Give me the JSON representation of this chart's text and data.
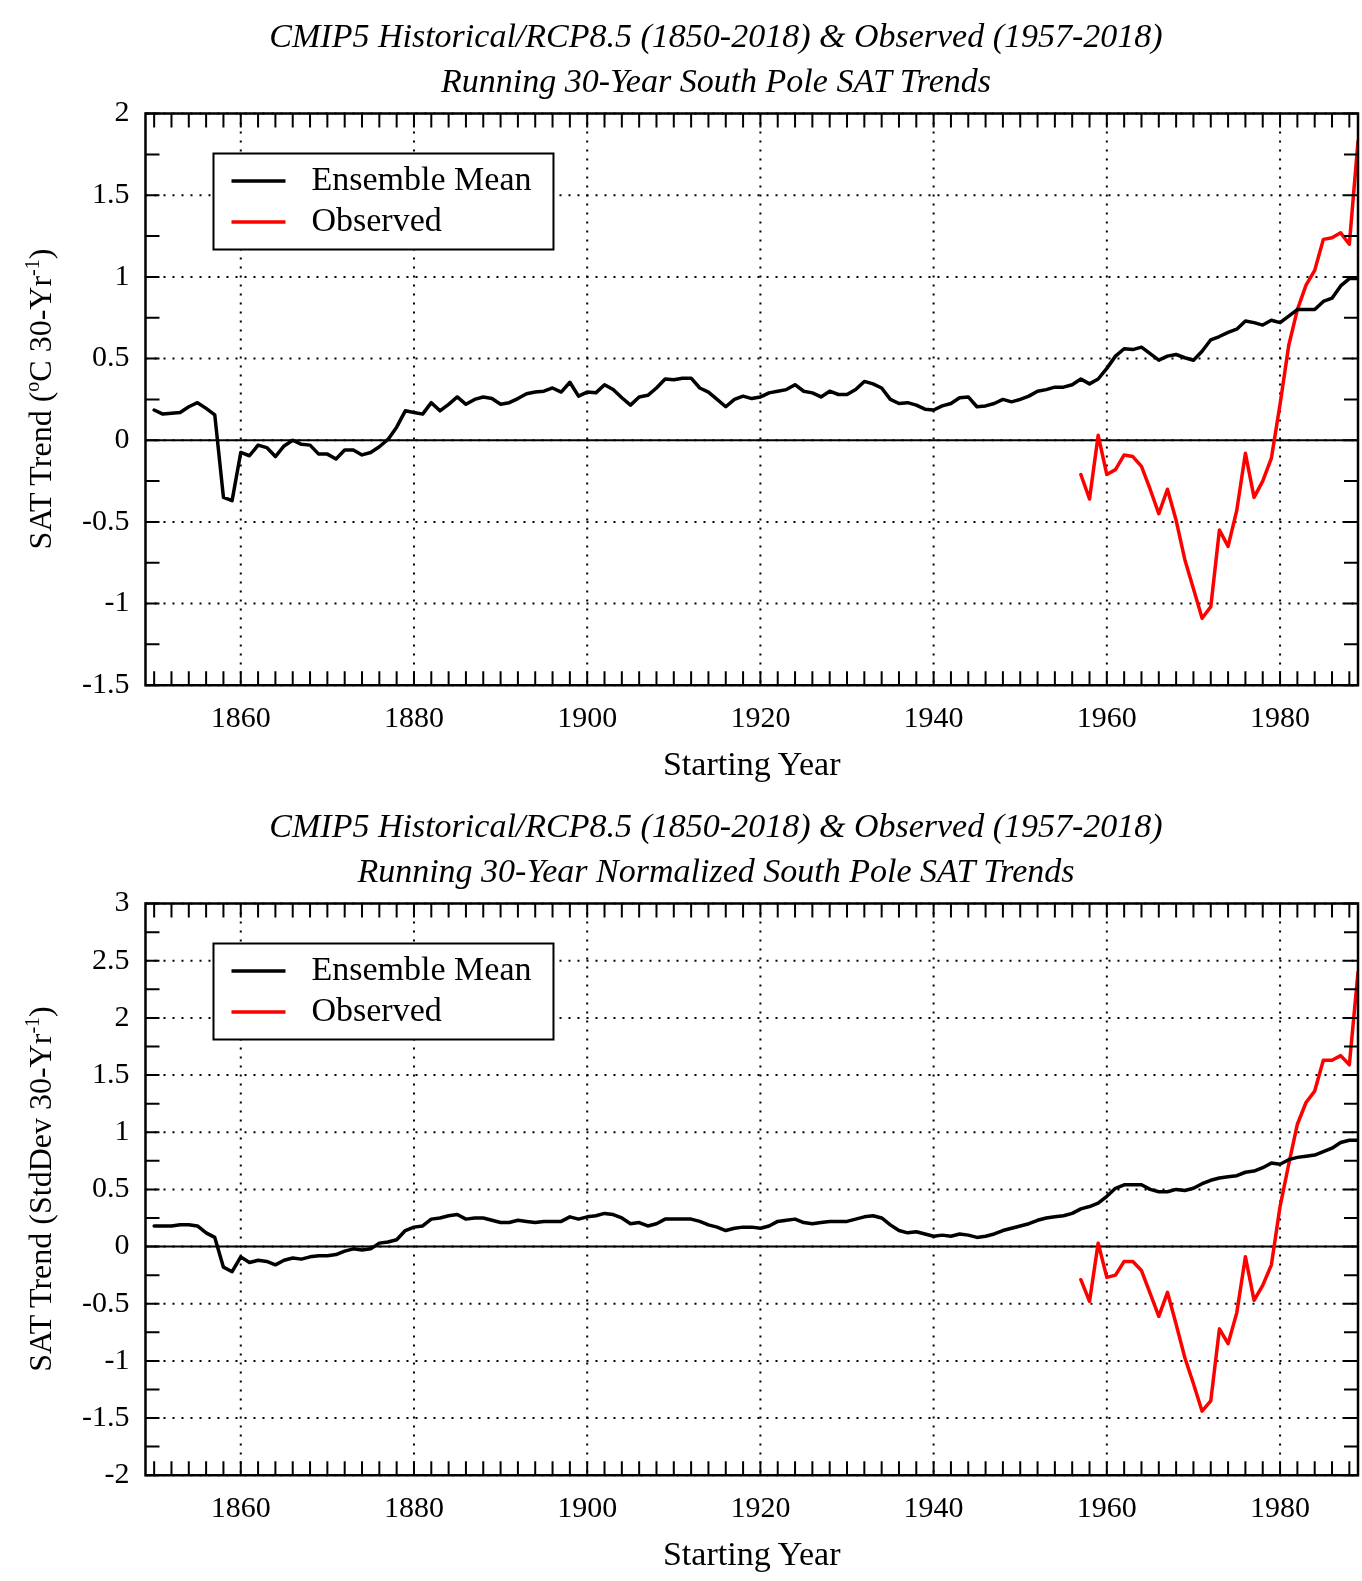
{
  "chart_data": [
    {
      "type": "line",
      "title": "CMIP5 Historical/RCP8.5 (1850-2018) & Observed (1957-2018)",
      "subtitle": "Running 30-Year South Pole SAT Trends",
      "xlabel": "Starting Year",
      "ylabel": "SAT Trend ($^{o}$C 30-Yr$^{-1}$)",
      "x": [
        1850,
        1851,
        1852,
        1853,
        1854,
        1855,
        1856,
        1857,
        1858,
        1859,
        1860,
        1861,
        1862,
        1863,
        1864,
        1865,
        1866,
        1867,
        1868,
        1869,
        1870,
        1871,
        1872,
        1873,
        1874,
        1875,
        1876,
        1877,
        1878,
        1879,
        1880,
        1881,
        1882,
        1883,
        1884,
        1885,
        1886,
        1887,
        1888,
        1889,
        1890,
        1891,
        1892,
        1893,
        1894,
        1895,
        1896,
        1897,
        1898,
        1899,
        1900,
        1901,
        1902,
        1903,
        1904,
        1905,
        1906,
        1907,
        1908,
        1909,
        1910,
        1911,
        1912,
        1913,
        1914,
        1915,
        1916,
        1917,
        1918,
        1919,
        1920,
        1921,
        1922,
        1923,
        1924,
        1925,
        1926,
        1927,
        1928,
        1929,
        1930,
        1931,
        1932,
        1933,
        1934,
        1935,
        1936,
        1937,
        1938,
        1939,
        1940,
        1941,
        1942,
        1943,
        1944,
        1945,
        1946,
        1947,
        1948,
        1949,
        1950,
        1951,
        1952,
        1953,
        1954,
        1955,
        1956,
        1957,
        1958,
        1959,
        1960,
        1961,
        1962,
        1963,
        1964,
        1965,
        1966,
        1967,
        1968,
        1969,
        1970,
        1971,
        1972,
        1973,
        1974,
        1975,
        1976,
        1977,
        1978,
        1979,
        1980,
        1981,
        1982,
        1983,
        1984,
        1985,
        1986,
        1987,
        1988,
        1989
      ],
      "series": [
        {
          "name": "Ensemble Mean",
          "color": "#000000",
          "values": [
            0.185,
            0.16,
            0.165,
            0.17,
            0.205,
            0.23,
            0.195,
            0.155,
            -0.35,
            -0.37,
            -0.075,
            -0.095,
            -0.03,
            -0.045,
            -0.1,
            -0.035,
            0,
            -0.025,
            -0.03,
            -0.085,
            -0.085,
            -0.115,
            -0.06,
            -0.06,
            -0.09,
            -0.075,
            -0.04,
            0.005,
            0.08,
            0.18,
            0.17,
            0.16,
            0.23,
            0.18,
            0.22,
            0.265,
            0.22,
            0.25,
            0.265,
            0.255,
            0.22,
            0.23,
            0.255,
            0.285,
            0.295,
            0.3,
            0.32,
            0.295,
            0.355,
            0.27,
            0.295,
            0.29,
            0.34,
            0.31,
            0.26,
            0.215,
            0.265,
            0.275,
            0.32,
            0.375,
            0.37,
            0.38,
            0.38,
            0.32,
            0.295,
            0.25,
            0.205,
            0.25,
            0.27,
            0.255,
            0.265,
            0.29,
            0.3,
            0.31,
            0.34,
            0.3,
            0.29,
            0.265,
            0.3,
            0.28,
            0.28,
            0.31,
            0.36,
            0.345,
            0.32,
            0.25,
            0.225,
            0.23,
            0.215,
            0.19,
            0.185,
            0.21,
            0.225,
            0.26,
            0.265,
            0.205,
            0.21,
            0.225,
            0.25,
            0.235,
            0.25,
            0.27,
            0.3,
            0.31,
            0.325,
            0.325,
            0.34,
            0.375,
            0.345,
            0.375,
            0.44,
            0.515,
            0.56,
            0.555,
            0.57,
            0.53,
            0.49,
            0.515,
            0.525,
            0.505,
            0.49,
            0.545,
            0.615,
            0.635,
            0.66,
            0.68,
            0.73,
            0.72,
            0.705,
            0.735,
            0.72,
            0.76,
            0.8,
            0.8,
            0.8,
            0.85,
            0.87,
            0.945,
            0.99,
            0.99
          ]
        },
        {
          "name": "Observed",
          "color": "#ff0000",
          "x": [
            1957,
            1958,
            1959,
            1960,
            1961,
            1962,
            1963,
            1964,
            1965,
            1966,
            1967,
            1968,
            1969,
            1970,
            1971,
            1972,
            1973,
            1974,
            1975,
            1976,
            1977,
            1978,
            1979,
            1980,
            1981,
            1982,
            1983,
            1984,
            1985,
            1986,
            1987,
            1988,
            1989
          ],
          "values": [
            -0.21,
            -0.36,
            0.03,
            -0.21,
            -0.18,
            -0.09,
            -0.1,
            -0.16,
            -0.3,
            -0.45,
            -0.3,
            -0.49,
            -0.73,
            -0.91,
            -1.09,
            -1.02,
            -0.55,
            -0.65,
            -0.43,
            -0.08,
            -0.35,
            -0.25,
            -0.11,
            0.22,
            0.58,
            0.8,
            0.95,
            1.04,
            1.23,
            1.24,
            1.27,
            1.2,
            1.83
          ]
        }
      ],
      "xlim": [
        1849,
        1989
      ],
      "xticks": [
        {
          "value": 1850,
          "label": null
        },
        {
          "value": 1852,
          "label": null
        },
        {
          "value": 1854,
          "label": null
        },
        {
          "value": 1856,
          "label": null
        },
        {
          "value": 1858,
          "label": null
        },
        1860,
        {
          "value": 1862,
          "label": null
        },
        {
          "value": 1864,
          "label": null
        },
        {
          "value": 1866,
          "label": null
        },
        {
          "value": 1868,
          "label": null
        },
        {
          "value": 1870,
          "label": null
        },
        {
          "value": 1872,
          "label": null
        },
        {
          "value": 1874,
          "label": null
        },
        {
          "value": 1876,
          "label": null
        },
        {
          "value": 1878,
          "label": null
        },
        1880,
        {
          "value": 1882,
          "label": null
        },
        {
          "value": 1884,
          "label": null
        },
        {
          "value": 1886,
          "label": null
        },
        {
          "value": 1888,
          "label": null
        },
        {
          "value": 1890,
          "label": null
        },
        {
          "value": 1892,
          "label": null
        },
        {
          "value": 1894,
          "label": null
        },
        {
          "value": 1896,
          "label": null
        },
        {
          "value": 1898,
          "label": null
        },
        1900,
        {
          "value": 1902,
          "label": null
        },
        {
          "value": 1904,
          "label": null
        },
        {
          "value": 1906,
          "label": null
        },
        {
          "value": 1908,
          "label": null
        },
        {
          "value": 1910,
          "label": null
        },
        {
          "value": 1912,
          "label": null
        },
        {
          "value": 1914,
          "label": null
        },
        {
          "value": 1916,
          "label": null
        },
        {
          "value": 1918,
          "label": null
        },
        1920,
        {
          "value": 1922,
          "label": null
        },
        {
          "value": 1924,
          "label": null
        },
        {
          "value": 1926,
          "label": null
        },
        {
          "value": 1928,
          "label": null
        },
        {
          "value": 1930,
          "label": null
        },
        {
          "value": 1932,
          "label": null
        },
        {
          "value": 1934,
          "label": null
        },
        {
          "value": 1936,
          "label": null
        },
        {
          "value": 1938,
          "label": null
        },
        1940,
        {
          "value": 1942,
          "label": null
        },
        {
          "value": 1944,
          "label": null
        },
        {
          "value": 1946,
          "label": null
        },
        {
          "value": 1948,
          "label": null
        },
        {
          "value": 1950,
          "label": null
        },
        {
          "value": 1952,
          "label": null
        },
        {
          "value": 1954,
          "label": null
        },
        {
          "value": 1956,
          "label": null
        },
        {
          "value": 1958,
          "label": null
        },
        1960,
        {
          "value": 1962,
          "label": null
        },
        {
          "value": 1964,
          "label": null
        },
        {
          "value": 1966,
          "label": null
        },
        {
          "value": 1968,
          "label": null
        },
        {
          "value": 1970,
          "label": null
        },
        {
          "value": 1972,
          "label": null
        },
        {
          "value": 1974,
          "label": null
        },
        {
          "value": 1976,
          "label": null
        },
        {
          "value": 1978,
          "label": null
        },
        1980,
        {
          "value": 1982,
          "label": null
        },
        {
          "value": 1984,
          "label": null
        },
        {
          "value": 1986,
          "label": null
        },
        {
          "value": 1988,
          "label": null
        }
      ],
      "ylim": [
        -1.5,
        2
      ],
      "yticks": [
        -1.5,
        {
          "value": -1.25,
          "label": null
        },
        -1,
        {
          "value": -0.75,
          "label": null
        },
        -0.5,
        {
          "value": -0.25,
          "label": null
        },
        0,
        {
          "value": 0.25,
          "label": null
        },
        0.5,
        {
          "value": 0.75,
          "label": null
        },
        1,
        {
          "value": 1.25,
          "label": null
        },
        1.5,
        {
          "value": 1.75,
          "label": null
        },
        2
      ],
      "grid": true,
      "legend": "top left",
      "marker": "none",
      "line_style": "solid",
      "ref_lines": [
        {
          "axis": "y",
          "value": 0,
          "color": "#000000"
        }
      ]
    },
    {
      "type": "line",
      "title": "CMIP5 Historical/RCP8.5 (1850-2018) & Observed (1957-2018)",
      "subtitle": "Running 30-Year Normalized South Pole SAT Trends",
      "xlabel": "Starting Year",
      "ylabel": "SAT Trend (StdDev 30-Yr$^{-1}$)",
      "x": [
        1850,
        1851,
        1852,
        1853,
        1854,
        1855,
        1856,
        1857,
        1858,
        1859,
        1860,
        1861,
        1862,
        1863,
        1864,
        1865,
        1866,
        1867,
        1868,
        1869,
        1870,
        1871,
        1872,
        1873,
        1874,
        1875,
        1876,
        1877,
        1878,
        1879,
        1880,
        1881,
        1882,
        1883,
        1884,
        1885,
        1886,
        1887,
        1888,
        1889,
        1890,
        1891,
        1892,
        1893,
        1894,
        1895,
        1896,
        1897,
        1898,
        1899,
        1900,
        1901,
        1902,
        1903,
        1904,
        1905,
        1906,
        1907,
        1908,
        1909,
        1910,
        1911,
        1912,
        1913,
        1914,
        1915,
        1916,
        1917,
        1918,
        1919,
        1920,
        1921,
        1922,
        1923,
        1924,
        1925,
        1926,
        1927,
        1928,
        1929,
        1930,
        1931,
        1932,
        1933,
        1934,
        1935,
        1936,
        1937,
        1938,
        1939,
        1940,
        1941,
        1942,
        1943,
        1944,
        1945,
        1946,
        1947,
        1948,
        1949,
        1950,
        1951,
        1952,
        1953,
        1954,
        1955,
        1956,
        1957,
        1958,
        1959,
        1960,
        1961,
        1962,
        1963,
        1964,
        1965,
        1966,
        1967,
        1968,
        1969,
        1970,
        1971,
        1972,
        1973,
        1974,
        1975,
        1976,
        1977,
        1978,
        1979,
        1980,
        1981,
        1982,
        1983,
        1984,
        1985,
        1986,
        1987,
        1988,
        1989
      ],
      "series": [
        {
          "name": "Ensemble Mean",
          "color": "#000000",
          "values": [
            0.18,
            0.18,
            0.18,
            0.19,
            0.19,
            0.18,
            0.12,
            0.08,
            -0.18,
            -0.22,
            -0.09,
            -0.14,
            -0.12,
            -0.13,
            -0.16,
            -0.12,
            -0.1,
            -0.11,
            -0.09,
            -0.08,
            -0.08,
            -0.07,
            -0.04,
            -0.02,
            -0.03,
            -0.02,
            0.03,
            0.04,
            0.06,
            0.14,
            0.17,
            0.18,
            0.24,
            0.25,
            0.27,
            0.28,
            0.24,
            0.25,
            0.25,
            0.23,
            0.21,
            0.21,
            0.23,
            0.22,
            0.21,
            0.22,
            0.22,
            0.22,
            0.26,
            0.24,
            0.26,
            0.27,
            0.29,
            0.28,
            0.25,
            0.2,
            0.21,
            0.18,
            0.2,
            0.24,
            0.24,
            0.24,
            0.24,
            0.22,
            0.19,
            0.17,
            0.14,
            0.16,
            0.17,
            0.17,
            0.16,
            0.18,
            0.22,
            0.23,
            0.24,
            0.21,
            0.2,
            0.21,
            0.22,
            0.22,
            0.22,
            0.24,
            0.26,
            0.27,
            0.25,
            0.19,
            0.14,
            0.12,
            0.13,
            0.11,
            0.09,
            0.1,
            0.09,
            0.11,
            0.1,
            0.08,
            0.09,
            0.11,
            0.14,
            0.16,
            0.18,
            0.2,
            0.23,
            0.25,
            0.26,
            0.27,
            0.29,
            0.33,
            0.35,
            0.38,
            0.44,
            0.51,
            0.54,
            0.54,
            0.54,
            0.5,
            0.48,
            0.48,
            0.5,
            0.49,
            0.51,
            0.55,
            0.58,
            0.6,
            0.61,
            0.62,
            0.65,
            0.66,
            0.69,
            0.73,
            0.72,
            0.76,
            0.78,
            0.79,
            0.8,
            0.83,
            0.86,
            0.91,
            0.93,
            0.93
          ]
        },
        {
          "name": "Observed",
          "color": "#ff0000",
          "x": [
            1957,
            1958,
            1959,
            1960,
            1961,
            1962,
            1963,
            1964,
            1965,
            1966,
            1967,
            1968,
            1969,
            1970,
            1971,
            1972,
            1973,
            1974,
            1975,
            1976,
            1977,
            1978,
            1979,
            1980,
            1981,
            1982,
            1983,
            1984,
            1985,
            1986,
            1987,
            1988,
            1989
          ],
          "values": [
            -0.29,
            -0.48,
            0.03,
            -0.27,
            -0.25,
            -0.13,
            -0.13,
            -0.21,
            -0.41,
            -0.61,
            -0.4,
            -0.68,
            -0.97,
            -1.2,
            -1.44,
            -1.35,
            -0.72,
            -0.85,
            -0.58,
            -0.09,
            -0.47,
            -0.34,
            -0.16,
            0.35,
            0.72,
            1.07,
            1.26,
            1.36,
            1.63,
            1.63,
            1.67,
            1.59,
            2.4
          ]
        }
      ],
      "xlim": [
        1849,
        1989
      ],
      "xticks": [
        {
          "value": 1850,
          "label": null
        },
        {
          "value": 1852,
          "label": null
        },
        {
          "value": 1854,
          "label": null
        },
        {
          "value": 1856,
          "label": null
        },
        {
          "value": 1858,
          "label": null
        },
        1860,
        {
          "value": 1862,
          "label": null
        },
        {
          "value": 1864,
          "label": null
        },
        {
          "value": 1866,
          "label": null
        },
        {
          "value": 1868,
          "label": null
        },
        {
          "value": 1870,
          "label": null
        },
        {
          "value": 1872,
          "label": null
        },
        {
          "value": 1874,
          "label": null
        },
        {
          "value": 1876,
          "label": null
        },
        {
          "value": 1878,
          "label": null
        },
        1880,
        {
          "value": 1882,
          "label": null
        },
        {
          "value": 1884,
          "label": null
        },
        {
          "value": 1886,
          "label": null
        },
        {
          "value": 1888,
          "label": null
        },
        {
          "value": 1890,
          "label": null
        },
        {
          "value": 1892,
          "label": null
        },
        {
          "value": 1894,
          "label": null
        },
        {
          "value": 1896,
          "label": null
        },
        {
          "value": 1898,
          "label": null
        },
        1900,
        {
          "value": 1902,
          "label": null
        },
        {
          "value": 1904,
          "label": null
        },
        {
          "value": 1906,
          "label": null
        },
        {
          "value": 1908,
          "label": null
        },
        {
          "value": 1910,
          "label": null
        },
        {
          "value": 1912,
          "label": null
        },
        {
          "value": 1914,
          "label": null
        },
        {
          "value": 1916,
          "label": null
        },
        {
          "value": 1918,
          "label": null
        },
        1920,
        {
          "value": 1922,
          "label": null
        },
        {
          "value": 1924,
          "label": null
        },
        {
          "value": 1926,
          "label": null
        },
        {
          "value": 1928,
          "label": null
        },
        {
          "value": 1930,
          "label": null
        },
        {
          "value": 1932,
          "label": null
        },
        {
          "value": 1934,
          "label": null
        },
        {
          "value": 1936,
          "label": null
        },
        {
          "value": 1938,
          "label": null
        },
        1940,
        {
          "value": 1942,
          "label": null
        },
        {
          "value": 1944,
          "label": null
        },
        {
          "value": 1946,
          "label": null
        },
        {
          "value": 1948,
          "label": null
        },
        {
          "value": 1950,
          "label": null
        },
        {
          "value": 1952,
          "label": null
        },
        {
          "value": 1954,
          "label": null
        },
        {
          "value": 1956,
          "label": null
        },
        {
          "value": 1958,
          "label": null
        },
        1960,
        {
          "value": 1962,
          "label": null
        },
        {
          "value": 1964,
          "label": null
        },
        {
          "value": 1966,
          "label": null
        },
        {
          "value": 1968,
          "label": null
        },
        {
          "value": 1970,
          "label": null
        },
        {
          "value": 1972,
          "label": null
        },
        {
          "value": 1974,
          "label": null
        },
        {
          "value": 1976,
          "label": null
        },
        {
          "value": 1978,
          "label": null
        },
        1980,
        {
          "value": 1982,
          "label": null
        },
        {
          "value": 1984,
          "label": null
        },
        {
          "value": 1986,
          "label": null
        },
        {
          "value": 1988,
          "label": null
        }
      ],
      "ylim": [
        -2,
        3
      ],
      "yticks": [
        -2,
        {
          "value": -1.75,
          "label": null
        },
        -1.5,
        {
          "value": -1.25,
          "label": null
        },
        -1,
        {
          "value": -0.75,
          "label": null
        },
        -0.5,
        {
          "value": -0.25,
          "label": null
        },
        0,
        {
          "value": 0.25,
          "label": null
        },
        0.5,
        {
          "value": 0.75,
          "label": null
        },
        1,
        {
          "value": 1.25,
          "label": null
        },
        1.5,
        {
          "value": 1.75,
          "label": null
        },
        2,
        {
          "value": 2.25,
          "label": null
        },
        2.5,
        {
          "value": 2.75,
          "label": null
        },
        3
      ],
      "grid": true,
      "legend": "top left",
      "marker": "none",
      "line_style": "solid",
      "ref_lines": [
        {
          "axis": "y",
          "value": 0,
          "color": "#000000"
        }
      ]
    }
  ]
}
